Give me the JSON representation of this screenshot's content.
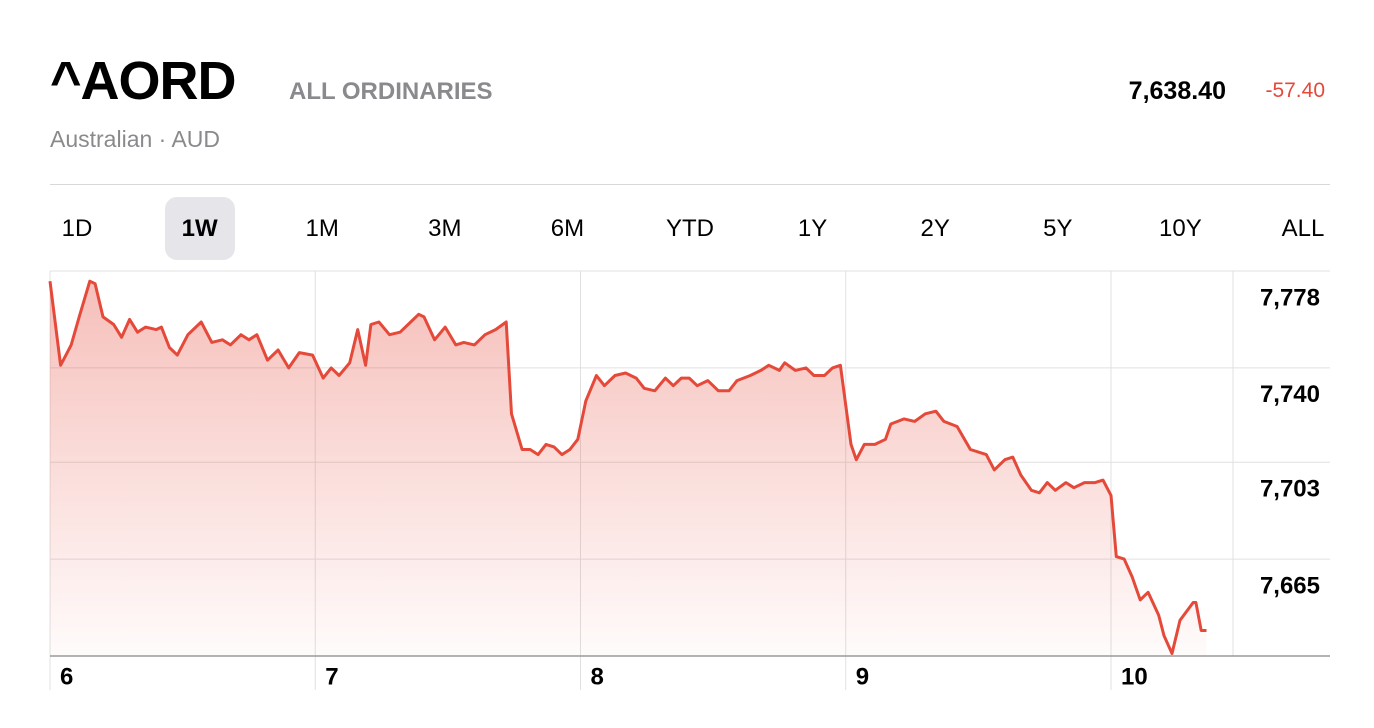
{
  "header": {
    "symbol": "^AORD",
    "name": "ALL ORDINARIES",
    "exchange": "Australian · AUD",
    "price": "7,638.40",
    "change": "-57.40"
  },
  "tabs": {
    "items": [
      "1D",
      "1W",
      "1M",
      "3M",
      "6M",
      "YTD",
      "1Y",
      "2Y",
      "5Y",
      "10Y",
      "ALL"
    ],
    "selected": "1W"
  },
  "chart_data": {
    "type": "line",
    "color": "#e5493a",
    "grid": true,
    "x": [
      6.0,
      6.04,
      6.08,
      6.11,
      6.15,
      6.17,
      6.2,
      6.24,
      6.27,
      6.3,
      6.33,
      6.36,
      6.4,
      6.42,
      6.45,
      6.48,
      6.52,
      6.57,
      6.61,
      6.65,
      6.68,
      6.72,
      6.75,
      6.78,
      6.82,
      6.86,
      6.9,
      6.94,
      6.99,
      7.03,
      7.06,
      7.09,
      7.13,
      7.16,
      7.19,
      7.21,
      7.24,
      7.28,
      7.32,
      7.36,
      7.39,
      7.41,
      7.45,
      7.49,
      7.53,
      7.56,
      7.6,
      7.64,
      7.68,
      7.72,
      7.74,
      7.78,
      7.81,
      7.84,
      7.87,
      7.9,
      7.93,
      7.96,
      7.99,
      8.02,
      8.06,
      8.09,
      8.13,
      8.17,
      8.21,
      8.24,
      8.28,
      8.32,
      8.35,
      8.38,
      8.41,
      8.44,
      8.48,
      8.52,
      8.56,
      8.59,
      8.64,
      8.68,
      8.71,
      8.75,
      8.77,
      8.81,
      8.85,
      8.88,
      8.92,
      8.95,
      8.98,
      9.02,
      9.04,
      9.07,
      9.11,
      9.15,
      9.17,
      9.22,
      9.26,
      9.3,
      9.34,
      9.37,
      9.42,
      9.47,
      9.53,
      9.56,
      9.6,
      9.63,
      9.66,
      9.7,
      9.73,
      9.76,
      9.79,
      9.83,
      9.86,
      9.9,
      9.94,
      9.97,
      10.0,
      10.02,
      10.05,
      10.08,
      10.11,
      10.14,
      10.18,
      10.2,
      10.23,
      10.26,
      10.31,
      10.32,
      10.34,
      10.36
    ],
    "values": [
      7774,
      7741,
      7749,
      7760,
      7774,
      7773,
      7760,
      7757,
      7752,
      7759,
      7754,
      7756,
      7755,
      7756,
      7748,
      7745,
      7753,
      7758,
      7750,
      7751,
      7749,
      7753,
      7751,
      7753,
      7743,
      7747,
      7740,
      7746,
      7745,
      7736,
      7740,
      7737,
      7742,
      7755,
      7741,
      7757,
      7758,
      7753,
      7754,
      7758,
      7761,
      7760,
      7751,
      7756,
      7749,
      7750,
      7749,
      7753,
      7755,
      7758,
      7722,
      7708,
      7708,
      7706,
      7710,
      7709,
      7706,
      7708,
      7712,
      7727,
      7737,
      7733,
      7737,
      7738,
      7736,
      7732,
      7731,
      7736,
      7733,
      7736,
      7736,
      7733,
      7735,
      7731,
      7731,
      7735,
      7737,
      7739,
      7741,
      7739,
      7742,
      7739,
      7740,
      7737,
      7737,
      7740,
      7741,
      7710,
      7704,
      7710,
      7710,
      7712,
      7718,
      7720,
      7719,
      7722,
      7723,
      7719,
      7717,
      7708,
      7706,
      7700,
      7704,
      7705,
      7698,
      7692,
      7691,
      7695,
      7692,
      7695,
      7693,
      7695,
      7695,
      7696,
      7690,
      7666,
      7665,
      7658,
      7649,
      7652,
      7643,
      7635,
      7628,
      7641,
      7648,
      7648,
      7637,
      7637
    ],
    "xlim": [
      6,
      10.46
    ],
    "xticks": [
      6,
      7,
      8,
      9,
      10
    ],
    "ylim": [
      7627,
      7778
    ],
    "yticks": [
      {
        "value": 7778,
        "label": "7,778"
      },
      {
        "value": 7740,
        "label": "7,740"
      },
      {
        "value": 7703,
        "label": "7,703"
      },
      {
        "value": 7665,
        "label": "7,665"
      }
    ]
  }
}
